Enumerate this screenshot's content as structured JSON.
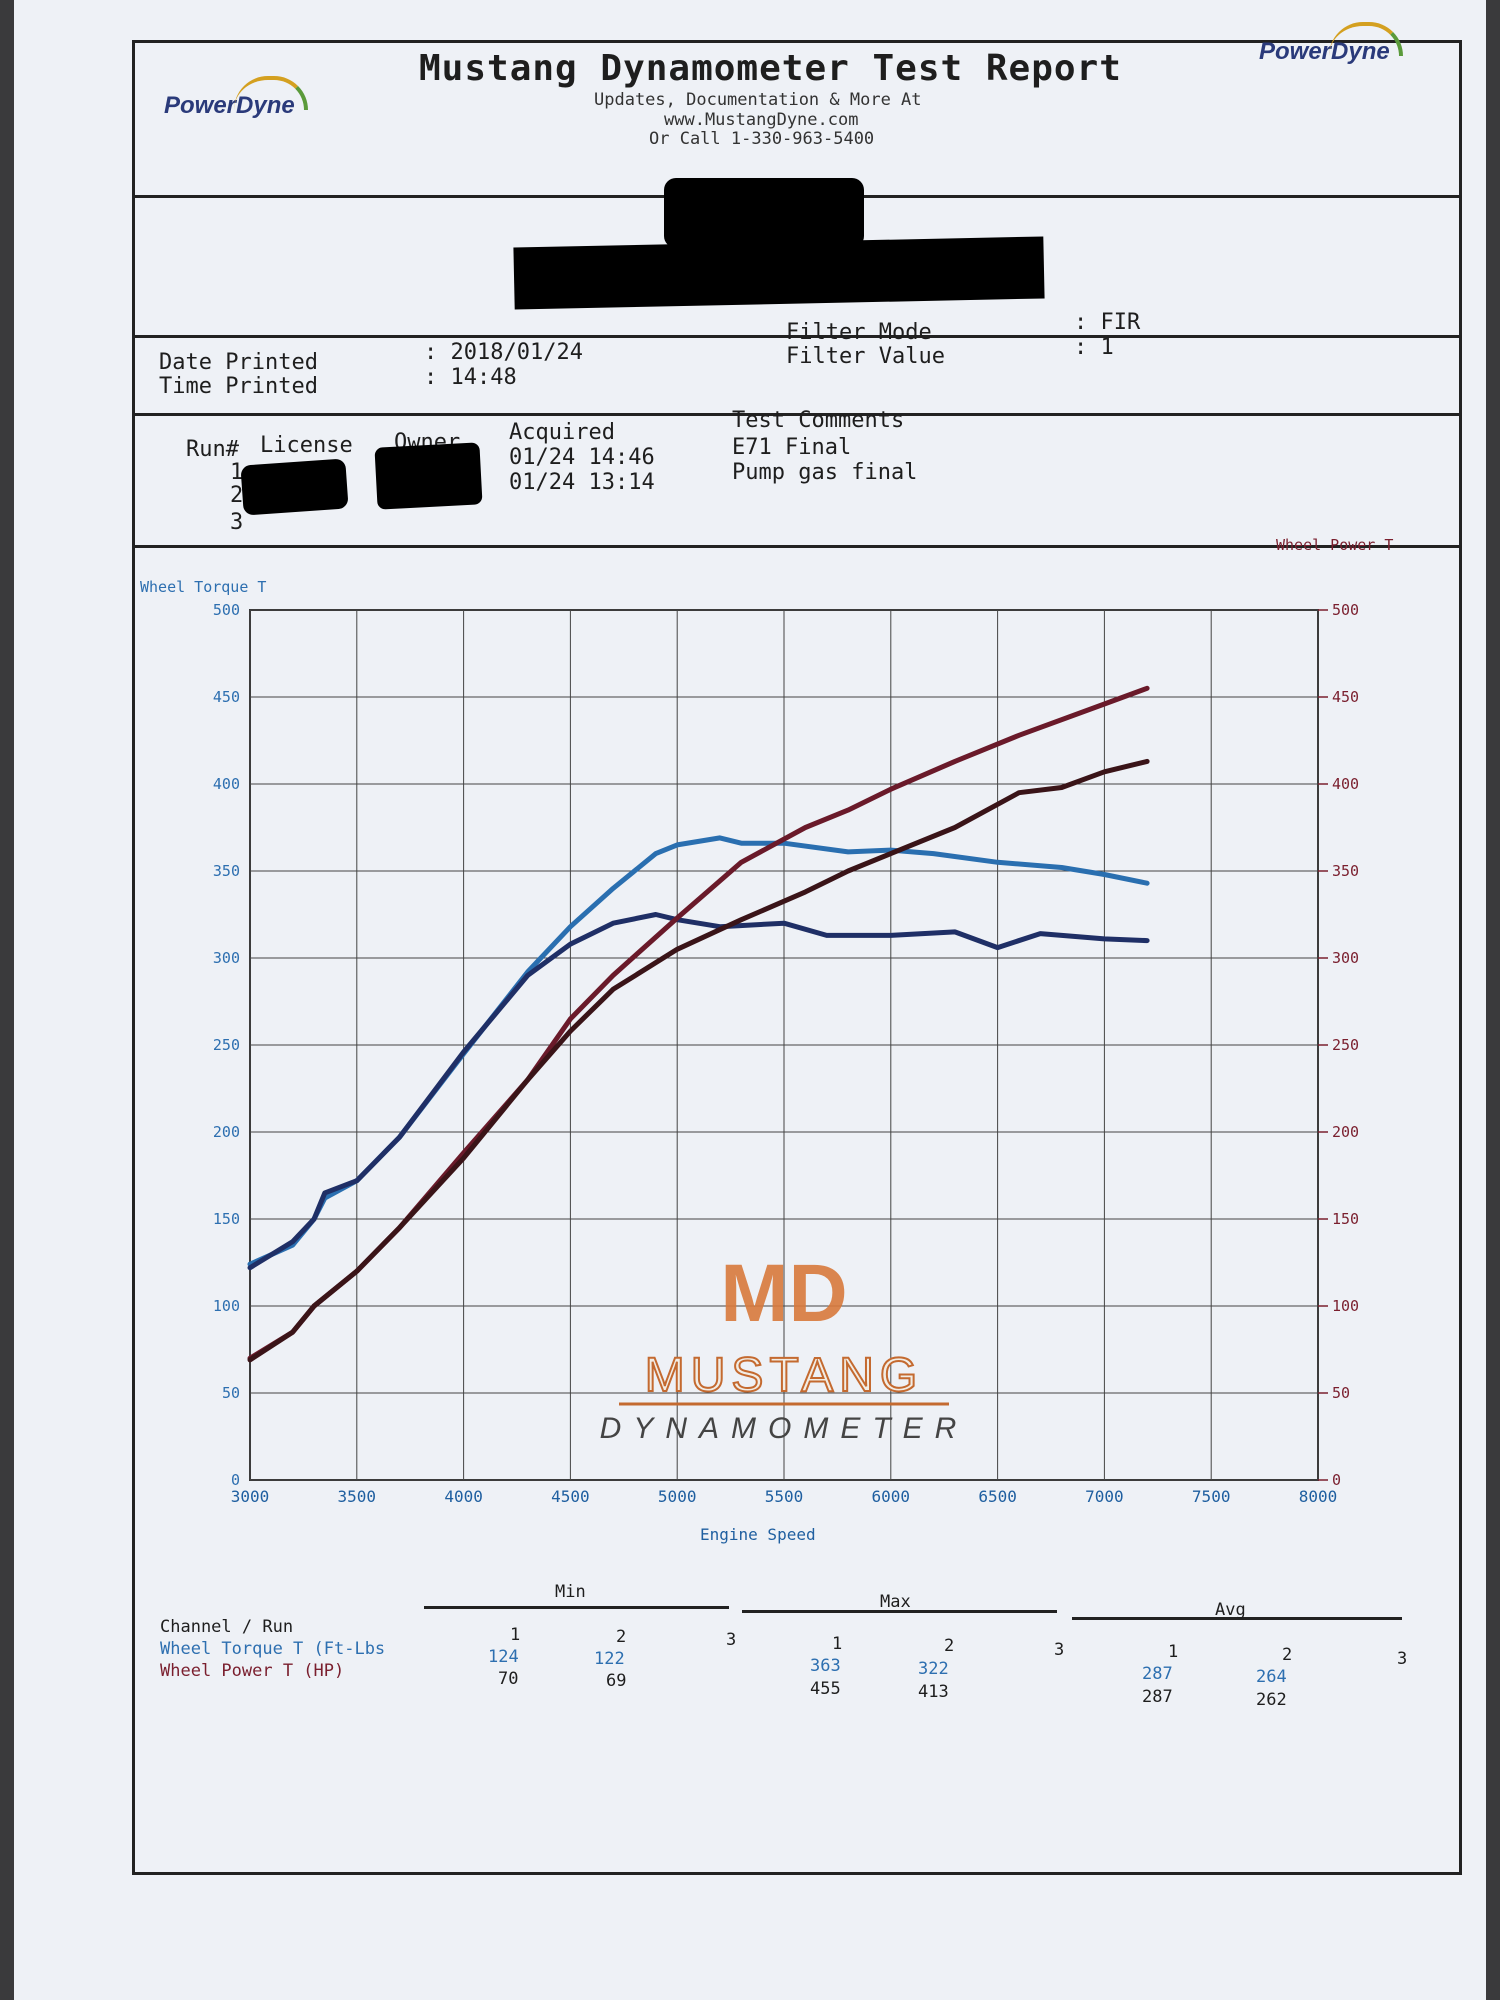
{
  "header": {
    "title": "Mustang Dynamometer Test Report",
    "line1": "Updates, Documentation & More At",
    "line2": "www.MustangDyne.com",
    "line3": "Or Call 1-330-963-5400",
    "logo_text": "PowerDyne"
  },
  "info": {
    "date_label": "Date Printed",
    "date_value": ": 2018/01/24",
    "time_label": "Time Printed",
    "time_value": ": 14:48",
    "filter_mode_label": "Filter Mode",
    "filter_mode_value": ": FIR",
    "filter_value_label": "Filter Value",
    "filter_value_value": ": 1"
  },
  "runs": {
    "col_run": "Run#",
    "col_license": "License",
    "col_owner": "Owner",
    "col_acquired": "Acquired",
    "col_comments": "Test Comments",
    "rows": [
      {
        "run": "1",
        "acquired": "01/24 14:46",
        "comment": "E71 Final"
      },
      {
        "run": "2",
        "acquired": "01/24 13:14",
        "comment": "Pump gas final"
      },
      {
        "run": "3",
        "acquired": "",
        "comment": ""
      }
    ]
  },
  "chart_data": {
    "type": "line",
    "xlabel": "Engine Speed",
    "ylabel_left": "Wheel Torque T",
    "ylabel_right": "Wheel Power T",
    "xlim": [
      3000,
      8000
    ],
    "ylim_left": [
      0,
      500
    ],
    "ylim_right": [
      0,
      500
    ],
    "x_ticks": [
      3000,
      3500,
      4000,
      4500,
      5000,
      5500,
      6000,
      6500,
      7000,
      7500,
      8000
    ],
    "y_ticks": [
      0,
      50,
      100,
      150,
      200,
      250,
      300,
      350,
      400,
      450,
      500
    ],
    "grid": true,
    "watermark": {
      "mark": "MD",
      "line1": "MUSTANG",
      "line2": "DYNAMOMETER"
    },
    "series": [
      {
        "axis": "left",
        "color": "#2a6fb0",
        "x": [
          3000,
          3200,
          3300,
          3350,
          3500,
          3700,
          4000,
          4300,
          4500,
          4700,
          4900,
          5000,
          5200,
          5300,
          5500,
          5800,
          6000,
          6200,
          6500,
          6800,
          7000,
          7200
        ],
        "y": [
          124,
          135,
          150,
          162,
          172,
          197,
          245,
          292,
          318,
          340,
          360,
          365,
          369,
          366,
          366,
          361,
          362,
          360,
          355,
          352,
          348,
          343
        ]
      },
      {
        "axis": "left",
        "color": "#1f2f66",
        "x": [
          3000,
          3200,
          3300,
          3350,
          3500,
          3700,
          4000,
          4300,
          4500,
          4700,
          4900,
          5000,
          5200,
          5500,
          5700,
          6000,
          6300,
          6500,
          6700,
          7000,
          7200
        ],
        "y": [
          122,
          137,
          150,
          165,
          172,
          197,
          246,
          290,
          308,
          320,
          325,
          322,
          318,
          320,
          313,
          313,
          315,
          306,
          314,
          311,
          310
        ]
      },
      {
        "axis": "right",
        "color": "#6a1a2a",
        "x": [
          3000,
          3200,
          3300,
          3500,
          3700,
          4000,
          4300,
          4500,
          4700,
          5000,
          5300,
          5600,
          5800,
          6000,
          6300,
          6600,
          7000,
          7200
        ],
        "y": [
          70,
          85,
          100,
          120,
          145,
          188,
          230,
          265,
          290,
          323,
          355,
          375,
          385,
          397,
          413,
          428,
          446,
          455
        ]
      },
      {
        "axis": "right",
        "color": "#3a1418",
        "x": [
          3000,
          3200,
          3300,
          3500,
          3700,
          4000,
          4300,
          4500,
          4700,
          5000,
          5300,
          5600,
          5800,
          6000,
          6300,
          6600,
          6800,
          7000,
          7200
        ],
        "y": [
          69,
          85,
          100,
          120,
          145,
          185,
          230,
          258,
          282,
          305,
          322,
          338,
          350,
          360,
          375,
          395,
          398,
          407,
          413
        ]
      }
    ]
  },
  "stats": {
    "min_label": "Min",
    "max_label": "Max",
    "avg_label": "Avg",
    "channel_label": "Channel / Run",
    "run_numbers": [
      "1",
      "2",
      "3"
    ],
    "torque_label": "Wheel Torque T (Ft-Lbs",
    "power_label": "Wheel Power T (HP)",
    "torque": {
      "min": [
        "124",
        "122"
      ],
      "max": [
        "363",
        "322"
      ],
      "avg": [
        "287",
        "264"
      ]
    },
    "power": {
      "min": [
        "70",
        "69"
      ],
      "max": [
        "455",
        "413"
      ],
      "avg": [
        "287",
        "262"
      ]
    }
  }
}
